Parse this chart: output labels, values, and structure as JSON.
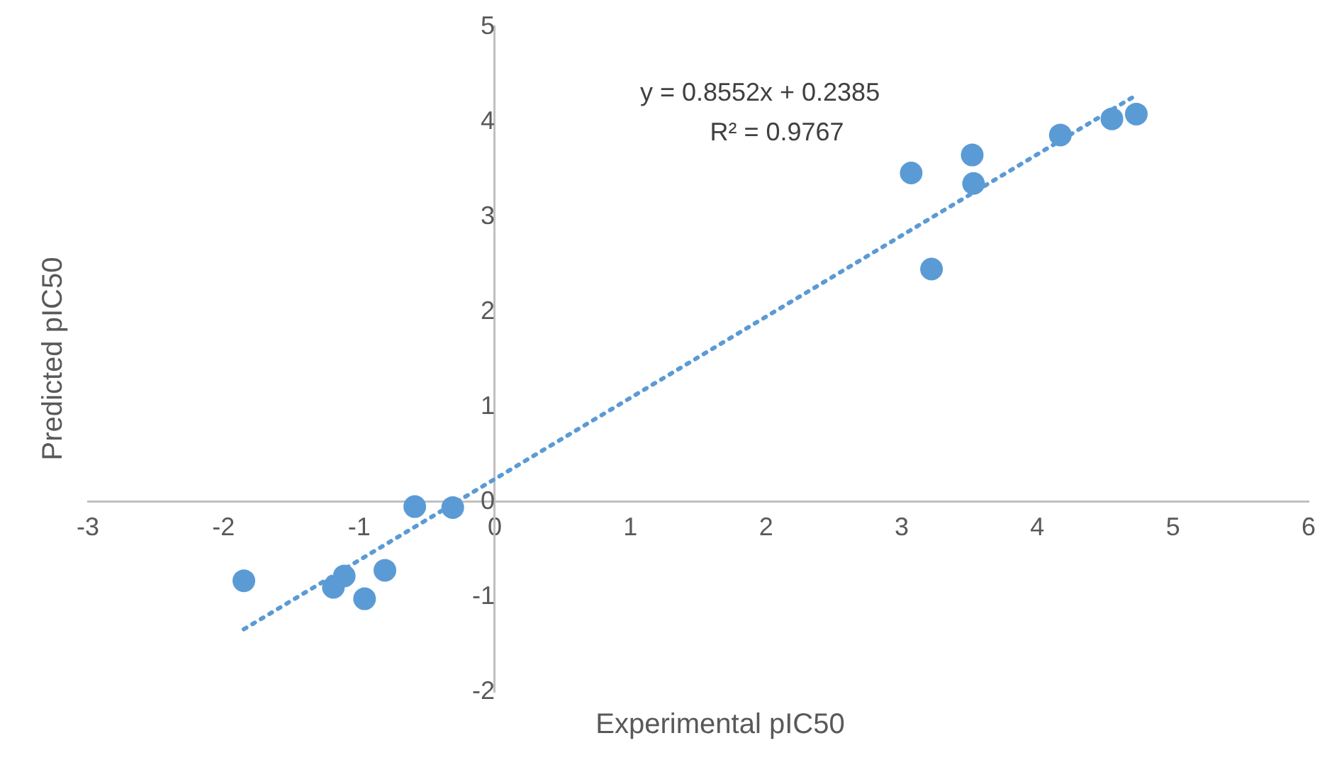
{
  "chart_data": {
    "type": "scatter",
    "xlabel": "Experimental pIC50",
    "ylabel": "Predicted pIC50",
    "xlim": [
      -3,
      6
    ],
    "xticks": [
      -3,
      -2,
      -1,
      0,
      1,
      2,
      3,
      4,
      5,
      6
    ],
    "ylim": [
      -2,
      5
    ],
    "yticks": [
      -2,
      -1,
      0,
      1,
      2,
      3,
      4,
      5
    ],
    "grid": false,
    "legend": false,
    "marker": "circle",
    "annotations": [
      "y = 0.8552x + 0.2385",
      "R² = 0.9767"
    ],
    "series": [
      {
        "color": "#5b9bd5",
        "x": [
          -1.85,
          -1.19,
          -1.11,
          -0.96,
          -0.81,
          -0.59,
          -0.31,
          3.07,
          3.22,
          3.52,
          3.53,
          4.17,
          4.55,
          4.73
        ],
        "values": [
          -0.83,
          -0.9,
          -0.78,
          -1.02,
          -0.72,
          -0.05,
          -0.06,
          3.46,
          2.45,
          3.65,
          3.35,
          3.86,
          4.03,
          4.08
        ]
      },
      {
        "type": "line",
        "color": "#5b9bd5",
        "marker": "none",
        "line_style": "dotted",
        "x": [
          -1.85,
          4.73
        ],
        "values": [
          -1.34,
          4.28
        ]
      }
    ]
  }
}
